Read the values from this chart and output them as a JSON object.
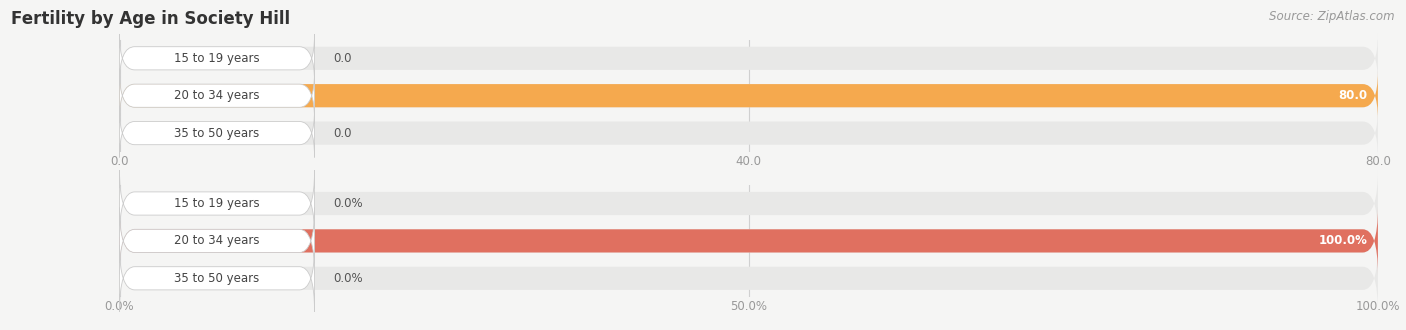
{
  "title": "Fertility by Age in Society Hill",
  "source_text": "Source: ZipAtlas.com",
  "top_chart": {
    "categories": [
      "15 to 19 years",
      "20 to 34 years",
      "35 to 50 years"
    ],
    "values": [
      0.0,
      80.0,
      0.0
    ],
    "xlim": [
      0,
      80.0
    ],
    "xticks": [
      0.0,
      40.0,
      80.0
    ],
    "xticklabels": [
      "0.0",
      "40.0",
      "80.0"
    ],
    "bar_color": "#F5A94E",
    "bar_bg_color": "#E8E8E7",
    "bar_height": 0.62
  },
  "bottom_chart": {
    "categories": [
      "15 to 19 years",
      "20 to 34 years",
      "35 to 50 years"
    ],
    "values": [
      0.0,
      100.0,
      0.0
    ],
    "xlim": [
      0,
      100.0
    ],
    "xticks": [
      0.0,
      50.0,
      100.0
    ],
    "xticklabels": [
      "0.0%",
      "50.0%",
      "100.0%"
    ],
    "bar_color": "#E07060",
    "bar_bg_color": "#E8E8E7",
    "bar_height": 0.62
  },
  "background_color": "#F5F5F4",
  "label_fontsize": 8.5,
  "tick_fontsize": 8.5,
  "title_fontsize": 12,
  "source_fontsize": 8.5
}
